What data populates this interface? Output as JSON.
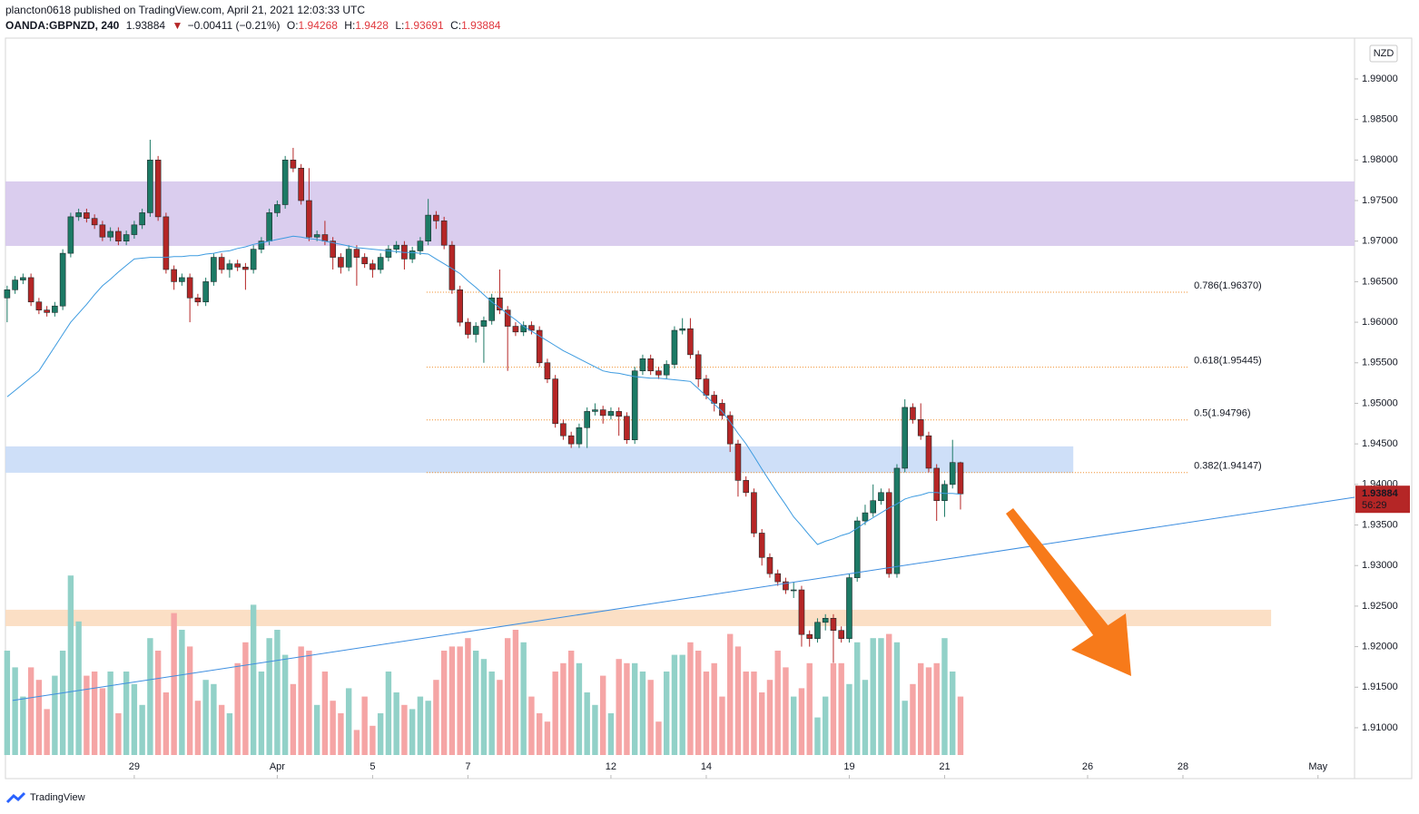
{
  "header": {
    "publisher": "plancton0618 published on TradingView.com, April 21, 2021 12:03:33 UTC",
    "symbol": "OANDA:GBPNZD, 240",
    "change": "−0.00411 (−0.21%)",
    "o": "O:",
    "h": "H:",
    "l": "L:",
    "c": "C:"
  },
  "currency": "NZD",
  "timer": "56:29",
  "logo": "TradingView",
  "chart_data": {
    "type": "candlestick",
    "ylim": [
      1.90373,
      1.99503
    ],
    "xlim": [
      -0.9,
      169.6
    ],
    "vlim": [
      0,
      100
    ],
    "yticks": [
      {
        "value": 1.91,
        "label": "1.91000"
      },
      {
        "value": 1.915,
        "label": "1.91500"
      },
      {
        "value": 1.92,
        "label": "1.92000"
      },
      {
        "value": 1.925,
        "label": "1.92500"
      },
      {
        "value": 1.93,
        "label": "1.93000"
      },
      {
        "value": 1.935,
        "label": "1.93500"
      },
      {
        "value": 1.94,
        "label": "1.94000"
      },
      {
        "value": 1.945,
        "label": "1.94500"
      },
      {
        "value": 1.95,
        "label": "1.95000"
      },
      {
        "value": 1.955,
        "label": "1.95500"
      },
      {
        "value": 1.96,
        "label": "1.96000"
      },
      {
        "value": 1.965,
        "label": "1.96500"
      },
      {
        "value": 1.97,
        "label": "1.97000"
      },
      {
        "value": 1.975,
        "label": "1.97500"
      },
      {
        "value": 1.98,
        "label": "1.98000"
      },
      {
        "value": 1.985,
        "label": "1.98500"
      },
      {
        "value": 1.99,
        "label": "1.99000"
      }
    ],
    "xticks": [
      {
        "value": 16,
        "label": "29"
      },
      {
        "value": 34,
        "label": "Apr"
      },
      {
        "value": 46,
        "label": "5"
      },
      {
        "value": 58,
        "label": "7"
      },
      {
        "value": 76,
        "label": "12"
      },
      {
        "value": 88,
        "label": "14"
      },
      {
        "value": 106,
        "label": "19"
      },
      {
        "value": 118,
        "label": "21"
      },
      {
        "value": 136,
        "label": "26"
      },
      {
        "value": 148,
        "label": "28"
      },
      {
        "value": 165,
        "label": "May"
      }
    ],
    "up_color": "#1c7a65",
    "down_color": "#b52626",
    "vol_up_color": "#92d1c8",
    "vol_down_color": "#f5a5a5",
    "ma_color": "#3d9be0",
    "ohlc": [
      [
        1.963,
        1.9645,
        1.96,
        1.964
      ],
      [
        1.964,
        1.9657,
        1.9635,
        1.9652
      ],
      [
        1.9652,
        1.966,
        1.9647,
        1.9655
      ],
      [
        1.9655,
        1.966,
        1.962,
        1.9625
      ],
      [
        1.9625,
        1.963,
        1.961,
        1.9615
      ],
      [
        1.9615,
        1.962,
        1.9607,
        1.9612
      ],
      [
        1.9612,
        1.9625,
        1.9607,
        1.962
      ],
      [
        1.962,
        1.969,
        1.9615,
        1.9685
      ],
      [
        1.9685,
        1.9735,
        1.968,
        1.973
      ],
      [
        1.973,
        1.974,
        1.9725,
        1.9735
      ],
      [
        1.9735,
        1.974,
        1.9723,
        1.9728
      ],
      [
        1.9728,
        1.9733,
        1.9715,
        1.972
      ],
      [
        1.972,
        1.9725,
        1.97,
        1.9705
      ],
      [
        1.9705,
        1.9717,
        1.97,
        1.9712
      ],
      [
        1.9712,
        1.9717,
        1.9695,
        1.97
      ],
      [
        1.97,
        1.9713,
        1.9695,
        1.9708
      ],
      [
        1.9708,
        1.9725,
        1.9703,
        1.972
      ],
      [
        1.972,
        1.974,
        1.9715,
        1.9735
      ],
      [
        1.9735,
        1.9825,
        1.973,
        1.98
      ],
      [
        1.98,
        1.9805,
        1.9725,
        1.973
      ],
      [
        1.973,
        1.9735,
        1.966,
        1.9665
      ],
      [
        1.9665,
        1.967,
        1.964,
        1.965
      ],
      [
        1.965,
        1.966,
        1.9645,
        1.9655
      ],
      [
        1.9655,
        1.966,
        1.96,
        1.963
      ],
      [
        1.963,
        1.9635,
        1.962,
        1.9625
      ],
      [
        1.9625,
        1.9655,
        1.962,
        1.965
      ],
      [
        1.965,
        1.9685,
        1.9645,
        1.968
      ],
      [
        1.968,
        1.9685,
        1.966,
        1.9665
      ],
      [
        1.9665,
        1.9677,
        1.9655,
        1.9672
      ],
      [
        1.9672,
        1.9677,
        1.9663,
        1.9668
      ],
      [
        1.9668,
        1.9673,
        1.964,
        1.9665
      ],
      [
        1.9665,
        1.9695,
        1.966,
        1.969
      ],
      [
        1.969,
        1.9705,
        1.9685,
        1.97
      ],
      [
        1.97,
        1.974,
        1.9695,
        1.9735
      ],
      [
        1.9735,
        1.975,
        1.973,
        1.9745
      ],
      [
        1.9745,
        1.9805,
        1.974,
        1.98
      ],
      [
        1.98,
        1.9815,
        1.9785,
        1.979
      ],
      [
        1.979,
        1.9795,
        1.9745,
        1.975
      ],
      [
        1.975,
        1.979,
        1.97,
        1.9705
      ],
      [
        1.9705,
        1.9713,
        1.97,
        1.9708
      ],
      [
        1.9708,
        1.9725,
        1.9695,
        1.97
      ],
      [
        1.97,
        1.9705,
        1.9665,
        1.968
      ],
      [
        1.968,
        1.9685,
        1.966,
        1.9668
      ],
      [
        1.9668,
        1.9695,
        1.9663,
        1.969
      ],
      [
        1.969,
        1.9695,
        1.9645,
        1.968
      ],
      [
        1.968,
        1.9685,
        1.9667,
        1.9672
      ],
      [
        1.9672,
        1.9677,
        1.9655,
        1.9665
      ],
      [
        1.9665,
        1.9685,
        1.966,
        1.968
      ],
      [
        1.968,
        1.9695,
        1.9675,
        1.969
      ],
      [
        1.969,
        1.97,
        1.9685,
        1.9695
      ],
      [
        1.9695,
        1.97,
        1.9665,
        1.9678
      ],
      [
        1.9678,
        1.9693,
        1.9673,
        1.9688
      ],
      [
        1.9688,
        1.9705,
        1.9683,
        1.97
      ],
      [
        1.97,
        1.9752,
        1.9695,
        1.9732
      ],
      [
        1.9732,
        1.9737,
        1.9715,
        1.9725
      ],
      [
        1.9725,
        1.973,
        1.969,
        1.9695
      ],
      [
        1.9695,
        1.97,
        1.9635,
        1.964
      ],
      [
        1.964,
        1.9645,
        1.9595,
        1.96
      ],
      [
        1.96,
        1.9605,
        1.958,
        1.9585
      ],
      [
        1.9585,
        1.96,
        1.9575,
        1.9595
      ],
      [
        1.9595,
        1.9607,
        1.955,
        1.9602
      ],
      [
        1.9602,
        1.9635,
        1.9597,
        1.963
      ],
      [
        1.963,
        1.9665,
        1.961,
        1.9615
      ],
      [
        1.9615,
        1.962,
        1.954,
        1.9595
      ],
      [
        1.9595,
        1.96,
        1.9583,
        1.9588
      ],
      [
        1.9588,
        1.9601,
        1.9583,
        1.9596
      ],
      [
        1.9596,
        1.9601,
        1.9585,
        1.959
      ],
      [
        1.959,
        1.9595,
        1.9545,
        1.955
      ],
      [
        1.955,
        1.9555,
        1.9525,
        1.953
      ],
      [
        1.953,
        1.9535,
        1.947,
        1.9475
      ],
      [
        1.9475,
        1.948,
        1.9455,
        1.946
      ],
      [
        1.946,
        1.9465,
        1.9445,
        1.945
      ],
      [
        1.945,
        1.9475,
        1.9445,
        1.947
      ],
      [
        1.947,
        1.9495,
        1.9445,
        1.949
      ],
      [
        1.949,
        1.95,
        1.9485,
        1.9492
      ],
      [
        1.9492,
        1.9497,
        1.9475,
        1.9485
      ],
      [
        1.9485,
        1.9495,
        1.948,
        1.949
      ],
      [
        1.949,
        1.9495,
        1.946,
        1.9484
      ],
      [
        1.9484,
        1.9489,
        1.945,
        1.9455
      ],
      [
        1.9455,
        1.9545,
        1.945,
        1.954
      ],
      [
        1.954,
        1.956,
        1.9535,
        1.9555
      ],
      [
        1.9555,
        1.956,
        1.9535,
        1.954
      ],
      [
        1.954,
        1.9545,
        1.953,
        1.9535
      ],
      [
        1.9535,
        1.9553,
        1.953,
        1.9548
      ],
      [
        1.9548,
        1.9595,
        1.9543,
        1.959
      ],
      [
        1.959,
        1.9605,
        1.9585,
        1.9592
      ],
      [
        1.9592,
        1.9605,
        1.9555,
        1.956
      ],
      [
        1.956,
        1.9565,
        1.952,
        1.953
      ],
      [
        1.953,
        1.9535,
        1.9505,
        1.951
      ],
      [
        1.951,
        1.9515,
        1.949,
        1.95
      ],
      [
        1.95,
        1.9505,
        1.948,
        1.9485
      ],
      [
        1.9485,
        1.949,
        1.944,
        1.945
      ],
      [
        1.945,
        1.9455,
        1.9385,
        1.9405
      ],
      [
        1.9405,
        1.941,
        1.9385,
        1.939
      ],
      [
        1.939,
        1.9395,
        1.9335,
        1.934
      ],
      [
        1.934,
        1.9345,
        1.93,
        1.931
      ],
      [
        1.931,
        1.9315,
        1.9285,
        1.929
      ],
      [
        1.929,
        1.9295,
        1.9275,
        1.928
      ],
      [
        1.928,
        1.9285,
        1.9265,
        1.927
      ],
      [
        1.927,
        1.928,
        1.926,
        1.927
      ],
      [
        1.927,
        1.9275,
        1.92,
        1.9215
      ],
      [
        1.9215,
        1.922,
        1.92,
        1.921
      ],
      [
        1.921,
        1.9235,
        1.9205,
        1.923
      ],
      [
        1.923,
        1.924,
        1.922,
        1.9235
      ],
      [
        1.9235,
        1.924,
        1.918,
        1.922
      ],
      [
        1.922,
        1.9225,
        1.9205,
        1.921
      ],
      [
        1.921,
        1.929,
        1.9205,
        1.9285
      ],
      [
        1.9285,
        1.936,
        1.928,
        1.9355
      ],
      [
        1.9355,
        1.9375,
        1.935,
        1.9365
      ],
      [
        1.9365,
        1.94,
        1.936,
        1.938
      ],
      [
        1.938,
        1.9395,
        1.9375,
        1.939
      ],
      [
        1.939,
        1.9395,
        1.9285,
        1.929
      ],
      [
        1.929,
        1.9425,
        1.9285,
        1.942
      ],
      [
        1.942,
        1.9505,
        1.9415,
        1.9495
      ],
      [
        1.9495,
        1.95,
        1.9475,
        1.948
      ],
      [
        1.948,
        1.95,
        1.9455,
        1.946
      ],
      [
        1.946,
        1.9465,
        1.9415,
        1.942
      ],
      [
        1.942,
        1.9425,
        1.9355,
        1.938
      ],
      [
        1.938,
        1.9405,
        1.936,
        1.94
      ],
      [
        1.94,
        1.9455,
        1.9395,
        1.9427
      ],
      [
        1.94268,
        1.9428,
        1.93691,
        1.93884
      ]
    ],
    "volume": [
      50,
      42,
      28,
      42,
      36,
      22,
      38,
      50,
      86,
      64,
      38,
      40,
      32,
      40,
      20,
      40,
      34,
      24,
      56,
      50,
      30,
      68,
      60,
      52,
      26,
      36,
      34,
      24,
      20,
      44,
      54,
      72,
      40,
      56,
      60,
      48,
      34,
      52,
      50,
      24,
      40,
      26,
      20,
      32,
      12,
      28,
      14,
      20,
      40,
      30,
      24,
      22,
      28,
      26,
      36,
      50,
      52,
      52,
      56,
      50,
      46,
      40,
      36,
      56,
      60,
      54,
      28,
      20,
      16,
      40,
      44,
      50,
      44,
      30,
      24,
      38,
      20,
      46,
      44,
      44,
      40,
      36,
      16,
      40,
      48,
      48,
      54,
      50,
      40,
      44,
      28,
      58,
      52,
      40,
      40,
      30,
      36,
      50,
      42,
      28,
      32,
      44,
      18,
      28,
      44,
      44,
      34,
      54,
      36,
      56,
      56,
      58,
      54,
      26,
      34,
      44,
      42,
      44,
      56,
      40,
      28
    ],
    "ma": [
      1.9508,
      1.9516,
      1.9524,
      1.9532,
      1.954,
      1.9555,
      1.957,
      1.9585,
      1.96,
      1.9611,
      1.9622,
      1.9634,
      1.9645,
      1.9653,
      1.9662,
      1.967,
      1.9678,
      1.9679,
      1.968,
      1.968,
      1.968,
      1.9681,
      1.9681,
      1.9682,
      1.9682,
      1.9684,
      1.9685,
      1.9687,
      1.9688,
      1.9691,
      1.9693,
      1.9696,
      1.9698,
      1.97,
      1.9702,
      1.9704,
      1.9706,
      1.9705,
      1.9703,
      1.9702,
      1.97,
      1.9698,
      1.9696,
      1.9694,
      1.9692,
      1.9691,
      1.969,
      1.9689,
      1.9688,
      1.9687,
      1.9686,
      1.9686,
      1.9685,
      1.9684,
      1.9678,
      1.9672,
      1.9666,
      1.966,
      1.9651,
      1.9643,
      1.9634,
      1.9625,
      1.9618,
      1.961,
      1.9603,
      1.9595,
      1.9589,
      1.9583,
      1.9577,
      1.9571,
      1.9565,
      1.956,
      1.9555,
      1.955,
      1.9545,
      1.954,
      1.9538,
      1.9537,
      1.9535,
      1.9533,
      1.9532,
      1.9531,
      1.9531,
      1.953,
      1.9529,
      1.9528,
      1.9527,
      1.9518,
      1.9509,
      1.9499,
      1.949,
      1.9477,
      1.9463,
      1.945,
      1.9435,
      1.9419,
      1.9404,
      1.9389,
      1.9375,
      1.936,
      1.9349,
      1.9337,
      1.9326,
      1.933,
      1.9333,
      1.9337,
      1.934,
      1.9346,
      1.9353,
      1.9359,
      1.9365,
      1.9371,
      1.9376,
      1.9382,
      1.9385,
      1.9387,
      1.939,
      1.939,
      1.9389,
      1.9389,
      1.9388
    ],
    "zones": [
      {
        "low": 1.96941,
        "high": 1.97736,
        "x_end": 169.6,
        "color": "#d6c8ec"
      },
      {
        "low": 1.94144,
        "high": 1.94469,
        "x_end": 134.2,
        "color": "#c9dcf7"
      },
      {
        "low": 1.92253,
        "high": 1.92455,
        "x_end": 159.1,
        "color": "#fbdcbf"
      }
    ],
    "fib": [
      {
        "label": "0.786(1.96370)",
        "value": 1.9637
      },
      {
        "label": "0.618(1.95445)",
        "value": 1.95445
      },
      {
        "label": "0.5(1.94796)",
        "value": 1.94796
      },
      {
        "label": "0.382(1.94147)",
        "value": 1.94147
      }
    ],
    "fib_range": [
      52.8,
      148.7
    ],
    "fib_color": "#f08a24",
    "trendline": {
      "x": [
        0,
        169.6
      ],
      "y": [
        1.91336,
        1.93842
      ],
      "color": "#3d8ee0"
    },
    "last_color": "#b52626"
  }
}
